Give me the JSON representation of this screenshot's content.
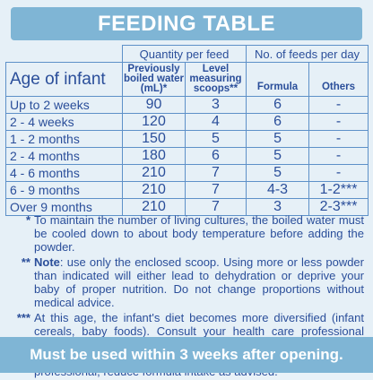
{
  "title": "FEEDING TABLE",
  "headers": {
    "group_quantity": "Quantity per feed",
    "group_feeds": "No. of feeds per day",
    "age": "Age of infant",
    "water": "Previously boiled water (mL)*",
    "scoops": "Level measuring scoops**",
    "formula": "Formula",
    "others": "Others"
  },
  "rows": [
    {
      "age": "Up to 2 weeks",
      "water": "90",
      "scoops": "3",
      "formula": "6",
      "others": "-"
    },
    {
      "age": "2 - 4 weeks",
      "water": "120",
      "scoops": "4",
      "formula": "6",
      "others": "-"
    },
    {
      "age": "1 - 2 months",
      "water": "150",
      "scoops": "5",
      "formula": "5",
      "others": "-"
    },
    {
      "age": "2 - 4 months",
      "water": "180",
      "scoops": "6",
      "formula": "5",
      "others": "-"
    },
    {
      "age": "4 - 6 months",
      "water": "210",
      "scoops": "7",
      "formula": "5",
      "others": "-"
    },
    {
      "age": "6 - 9 months",
      "water": "210",
      "scoops": "7",
      "formula": "4-3",
      "others": "1-2***"
    },
    {
      "age": "Over 9 months",
      "water": "210",
      "scoops": "7",
      "formula": "3",
      "others": "2-3***"
    }
  ],
  "notes": [
    {
      "mark": "*",
      "bold_lead": "",
      "text": "To maintain the number of living cultures, the boiled water must be cooled down to about body temperature before adding the powder."
    },
    {
      "mark": "**",
      "bold_lead": "Note",
      "text": ": use only the enclosed scoop. Using more or less powder than indicated will either lead to dehydration or deprive your baby of proper nutrition. Do not change proportions without medical advice."
    },
    {
      "mark": "***",
      "bold_lead": "",
      "text": "At this age, the infant's diet becomes more diversified (infant cereals, baby foods). Consult your health care professional before introducing any new food to baby's diet. If an earlier introduction of new foods is recommended by your health care professional, reduce formula intake as advised."
    }
  ],
  "footer": "Must be used within 3 weeks after opening."
}
